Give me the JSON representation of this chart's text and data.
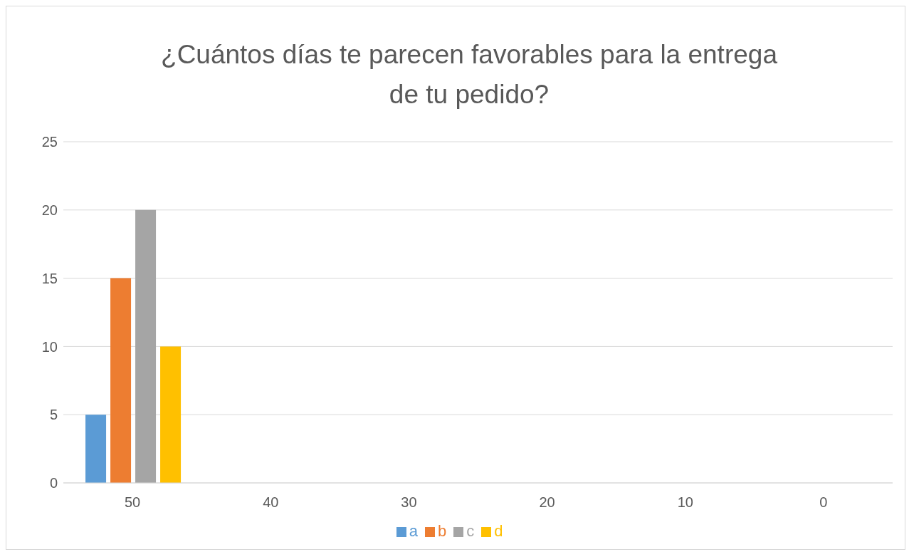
{
  "chart_data": {
    "type": "bar",
    "title": "¿Cuántos días te parecen favorables para la entrega de tu pedido?",
    "categories": [
      "50",
      "40",
      "30",
      "20",
      "10",
      "0"
    ],
    "series": [
      {
        "name": "a",
        "color": "#5b9bd5",
        "values": [
          5,
          null,
          null,
          null,
          null,
          null
        ]
      },
      {
        "name": "b",
        "color": "#ed7d31",
        "values": [
          15,
          null,
          null,
          null,
          null,
          null
        ]
      },
      {
        "name": "c",
        "color": "#a5a5a5",
        "values": [
          20,
          null,
          null,
          null,
          null,
          null
        ]
      },
      {
        "name": "d",
        "color": "#ffc000",
        "values": [
          10,
          null,
          null,
          null,
          null,
          null
        ]
      }
    ],
    "ylim": [
      0,
      25
    ],
    "yticks": [
      0,
      5,
      10,
      15,
      20,
      25
    ],
    "grid": "y",
    "legend": "bottom"
  }
}
